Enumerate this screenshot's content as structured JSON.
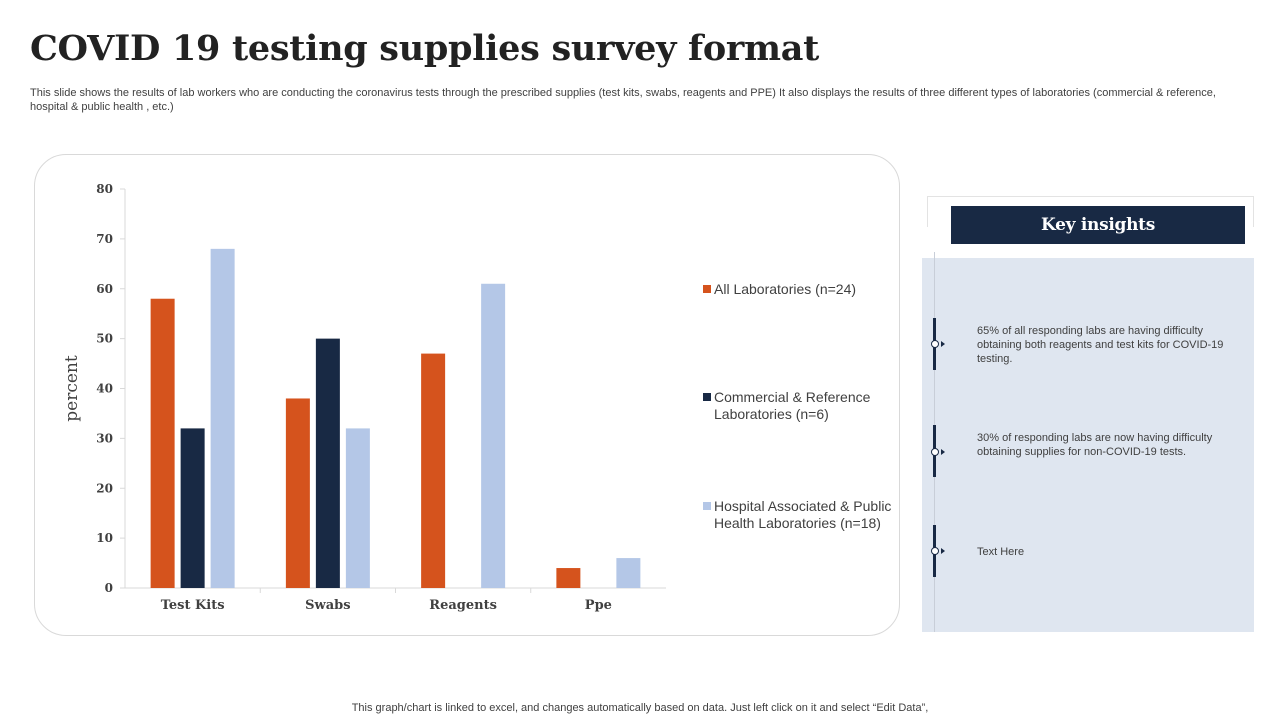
{
  "title": "COVID 19 testing supplies survey format",
  "subtitle": "This slide shows the results of lab workers who are conducting the coronavirus tests through the prescribed supplies (test kits, swabs, reagents and PPE) It also displays the results of three different types of laboratories (commercial & reference, hospital & public health , etc.)",
  "chart_data": {
    "type": "bar",
    "categories": [
      "Test Kits",
      "Swabs",
      "Reagents",
      "Ppe"
    ],
    "series": [
      {
        "name": "All Laboratories (n=24)",
        "values": [
          58,
          38,
          47,
          4
        ],
        "color": "#d5531d"
      },
      {
        "name": "Commercial & Reference Laboratories (n=6)",
        "values": [
          32,
          50,
          0,
          0
        ],
        "color": "#182944"
      },
      {
        "name": "Hospital Associated & Public Health Laboratories (n=18)",
        "values": [
          68,
          32,
          61,
          6
        ],
        "color": "#b4c7e7"
      }
    ],
    "ylabel": "percent",
    "ylim": [
      0,
      80
    ],
    "yticks": [
      0,
      10,
      20,
      30,
      40,
      50,
      60,
      70,
      80
    ],
    "grid": false,
    "legend": "right"
  },
  "legend": {
    "item1": "All Laboratories (n=24)",
    "item2": "Commercial & Reference Laboratories (n=6)",
    "item3": "Hospital Associated & Public Health Laboratories (n=18)"
  },
  "insights": {
    "header": "Key insights",
    "items": [
      "65%  of all responding labs are having difficulty obtaining both reagents and test kits for COVID-19 testing.",
      "30% of responding labs are now having difficulty obtaining supplies for non-COVID-19 tests.",
      "Text Here"
    ]
  },
  "footer": "This graph/chart is linked to excel,  and changes automatically based on data. Just left click on it and select “Edit Data”,",
  "colors": {
    "accent_orange": "#d5531d",
    "navy": "#182944",
    "light_blue": "#b4c7e7",
    "panel_bg": "#dfe6f0"
  }
}
